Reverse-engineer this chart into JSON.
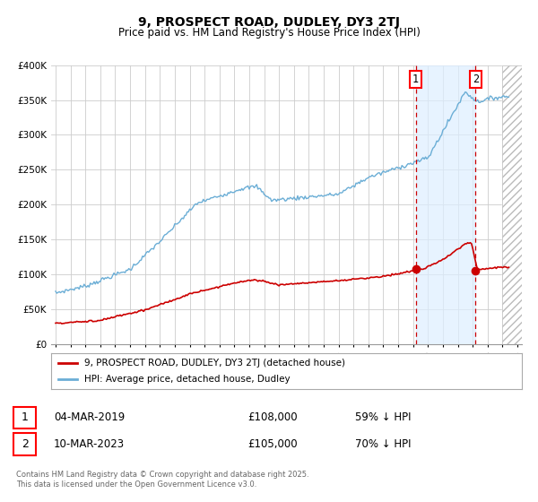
{
  "title": "9, PROSPECT ROAD, DUDLEY, DY3 2TJ",
  "subtitle": "Price paid vs. HM Land Registry's House Price Index (HPI)",
  "title_fontsize": 10,
  "subtitle_fontsize": 8.5,
  "xlim_start": 1994.7,
  "xlim_end": 2026.3,
  "ylim": [
    0,
    400000
  ],
  "yticks": [
    0,
    50000,
    100000,
    150000,
    200000,
    250000,
    300000,
    350000,
    400000
  ],
  "ytick_labels": [
    "£0",
    "£50K",
    "£100K",
    "£150K",
    "£200K",
    "£250K",
    "£300K",
    "£350K",
    "£400K"
  ],
  "xticks": [
    1995,
    1996,
    1997,
    1998,
    1999,
    2000,
    2001,
    2002,
    2003,
    2004,
    2005,
    2006,
    2007,
    2008,
    2009,
    2010,
    2011,
    2012,
    2013,
    2014,
    2015,
    2016,
    2017,
    2018,
    2019,
    2020,
    2021,
    2022,
    2023,
    2024,
    2025,
    2026
  ],
  "marker1_x": 2019.17,
  "marker1_y": 108000,
  "marker2_x": 2023.19,
  "marker2_y": 105000,
  "vline1_x": 2019.17,
  "vline2_x": 2023.19,
  "hpi_color": "#6baed6",
  "price_color": "#cc0000",
  "marker_color": "#cc0000",
  "bg_color": "#ffffff",
  "grid_color": "#cccccc",
  "legend_label_price": "9, PROSPECT ROAD, DUDLEY, DY3 2TJ (detached house)",
  "legend_label_hpi": "HPI: Average price, detached house, Dudley",
  "table_row1": [
    "1",
    "04-MAR-2019",
    "£108,000",
    "59% ↓ HPI"
  ],
  "table_row2": [
    "2",
    "10-MAR-2023",
    "£105,000",
    "70% ↓ HPI"
  ],
  "footer": "Contains HM Land Registry data © Crown copyright and database right 2025.\nThis data is licensed under the Open Government Licence v3.0.",
  "shaded_region_color": "#ddeeff",
  "shaded_alpha": 0.7,
  "hatch_start": 2025.0,
  "hatch_color": "#cccccc"
}
